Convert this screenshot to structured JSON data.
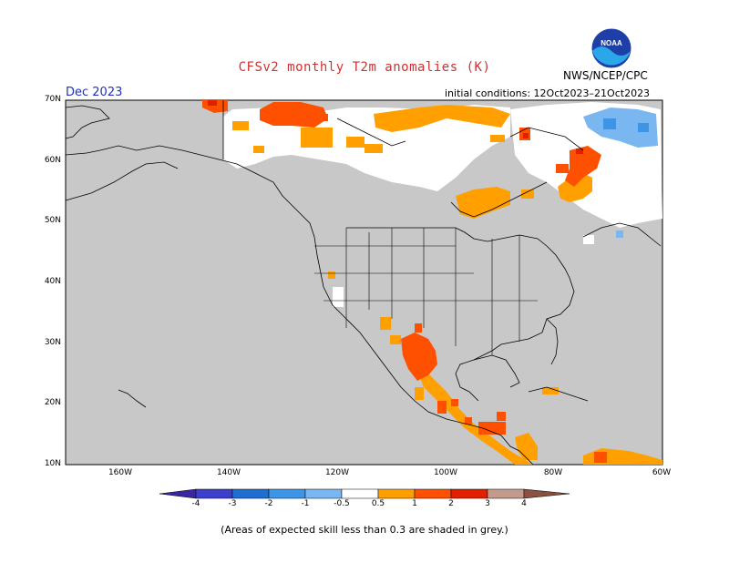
{
  "header": {
    "title": "CFSv2 monthly T2m anomalies (K)",
    "month": "Dec 2023",
    "initial_conditions": "initial conditions: 12Oct2023–21Oct2023",
    "agency": "NWS/NCEP/CPC",
    "logo_text": "NOAA"
  },
  "map": {
    "lat_labels": [
      "70N",
      "60N",
      "50N",
      "40N",
      "30N",
      "20N",
      "10N"
    ],
    "lon_labels": [
      "160W",
      "140W",
      "120W",
      "100W",
      "80W",
      "60W"
    ],
    "no_skill_color": "#c8c8c8",
    "land_outline_color": "#000000"
  },
  "colorbar": {
    "tick_labels": [
      "-4",
      "-3",
      "-2",
      "-1",
      "-0.5",
      "0.5",
      "1",
      "2",
      "3",
      "4"
    ],
    "colors": [
      "#3a26a0",
      "#3b3fcb",
      "#1f6ed1",
      "#3d95e8",
      "#7ab7f0",
      "#ffffff",
      "#ffa000",
      "#ff5000",
      "#e12000",
      "#a50000",
      "#c49a8c",
      "#8a5040"
    ]
  },
  "footnote": "(Areas of expected skill less than 0.3 are shaded in grey.)"
}
